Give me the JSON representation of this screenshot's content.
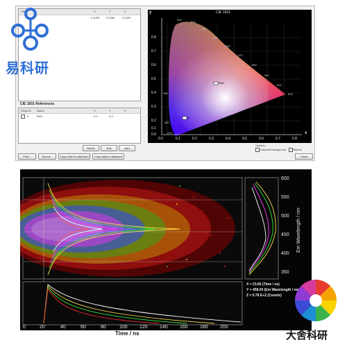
{
  "top": {
    "corner_label": "CIE",
    "table_headers": [
      "X",
      "Y",
      "Z"
    ],
    "table_values": [
      "0.1050",
      "0.2080",
      "0.1020"
    ],
    "references_title": "CIE 1931 References",
    "ref_headers": [
      "Show",
      "ID",
      "Name",
      "X",
      "Y",
      "Z"
    ],
    "ref_row": [
      "Ir",
      "Ref1",
      "0.3",
      "0.4"
    ],
    "buttons_mid": [
      "Delete",
      "Edit",
      "Add"
    ],
    "buttons_bottom": [
      "Print...",
      "Export...",
      "Copy chart to clipboard",
      "Copy data to clipboard",
      "Close"
    ],
    "options_label": "Options",
    "checkbox1": "Coloured background",
    "checkbox2": "Names",
    "cie": {
      "title": "CIE 1931",
      "x_axis": "x",
      "y_axis": "y",
      "y_ticks": [
        "0.8",
        "0.7",
        "0.6",
        "0.5",
        "0.4",
        "0.3",
        "0.2",
        "0.1",
        "0.0"
      ],
      "x_ticks": [
        "0.0",
        "0.1",
        "0.2",
        "0.3",
        "0.4",
        "0.5",
        "0.6",
        "0.7",
        "0.8"
      ],
      "wavelengths": [
        "520",
        "530",
        "540",
        "550",
        "560",
        "570",
        "580",
        "590",
        "600",
        "620",
        "490",
        "480",
        "470"
      ],
      "marker1": "Ref1",
      "marker2": "R"
    }
  },
  "bottom": {
    "y_axis_title": "Em Wavelength / nm",
    "y_ticks": [
      "600",
      "550",
      "500",
      "450",
      "400",
      "350"
    ],
    "x_axis_title": "Time / ns",
    "x_ticks": [
      "0",
      "20",
      "40",
      "60",
      "80",
      "100",
      "120",
      "140",
      "160",
      "180",
      "200"
    ],
    "readout": [
      "X = 23.66 (Time / ns)",
      "Y = 458.00 (Em Wavelength / nm)",
      "Z = 0.78 E+2 (Counts)"
    ]
  },
  "brand_top_left": "易科研",
  "brand_bottom_right": "大舍科研",
  "colors": {
    "plot_background": "#050505",
    "brand_blue": "#2f6fd6",
    "trace_red": "#ff2a2a",
    "trace_yellow": "#ffe14d",
    "trace_green": "#39e639",
    "trace_blue": "#4f6bff",
    "trace_magenta": "#ff3cff"
  }
}
